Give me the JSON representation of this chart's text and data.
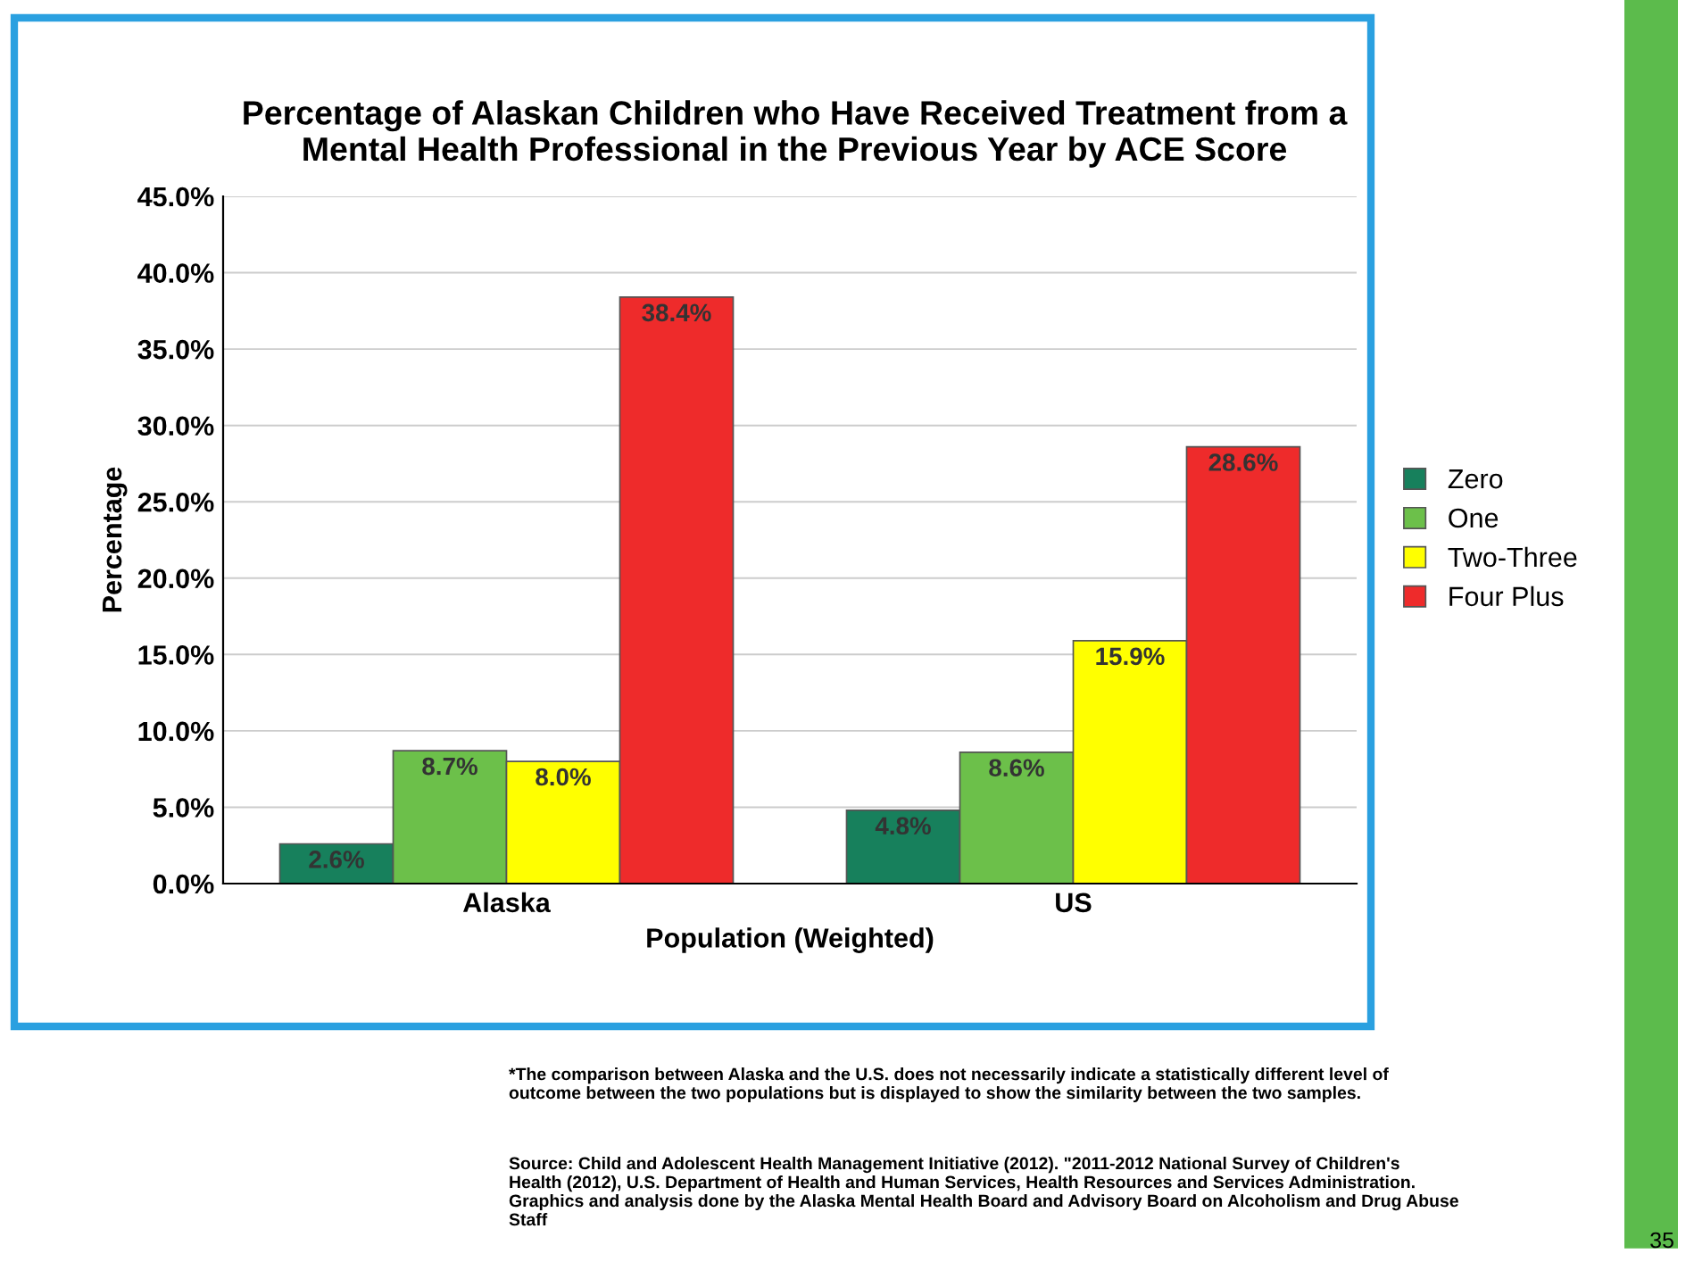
{
  "chart_data": {
    "type": "bar",
    "title": "Percentage of Alaskan Children who Have Received Treatment from a\nMental Health Professional in the Previous Year by ACE Score",
    "xlabel": "Population (Weighted)",
    "ylabel": "Percentage",
    "categories": [
      "Alaska",
      "US"
    ],
    "series": [
      {
        "name": "Zero",
        "color": "#17805c",
        "values": [
          2.6,
          4.8
        ],
        "value_labels": [
          "2.6%",
          "4.8%"
        ]
      },
      {
        "name": "One",
        "color": "#6cc04a",
        "values": [
          8.7,
          8.6
        ],
        "value_labels": [
          "8.7%",
          "8.6%"
        ]
      },
      {
        "name": "Two-Three",
        "color": "#ffff00",
        "values": [
          8.0,
          15.9
        ],
        "value_labels": [
          "8.0%",
          "15.9%"
        ]
      },
      {
        "name": "Four Plus",
        "color": "#ee2b2b",
        "values": [
          38.4,
          28.6
        ],
        "value_labels": [
          "38.4%",
          "28.6%"
        ]
      }
    ],
    "ylim": [
      0,
      45
    ],
    "yticks": [
      {
        "value": 0,
        "label": "0.0%"
      },
      {
        "value": 5,
        "label": "5.0%"
      },
      {
        "value": 10,
        "label": "10.0%"
      },
      {
        "value": 15,
        "label": "15.0%"
      },
      {
        "value": 20,
        "label": "20.0%"
      },
      {
        "value": 25,
        "label": "25.0%"
      },
      {
        "value": 30,
        "label": "30.0%"
      },
      {
        "value": 35,
        "label": "35.0%"
      },
      {
        "value": 40,
        "label": "40.0%"
      },
      {
        "value": 45,
        "label": "45.0%"
      }
    ],
    "grid": "y",
    "legend": "right",
    "annotations": [
      "*The comparison between Alaska and the U.S. does not necessarily indicate a statistically different level of\noutcome between the two populations but is displayed to show the similarity between the two samples.",
      "Source: Child and Adolescent Health Management Initiative (2012). \"2011-2012 National Survey of Children's\nHealth (2012), U.S. Department of Health and Human Services, Health Resources and Services Administration.\nGraphics and analysis done by the Alaska Mental Health Board and Advisory Board on Alcoholism and Drug Abuse\nStaff",
      "35"
    ]
  }
}
